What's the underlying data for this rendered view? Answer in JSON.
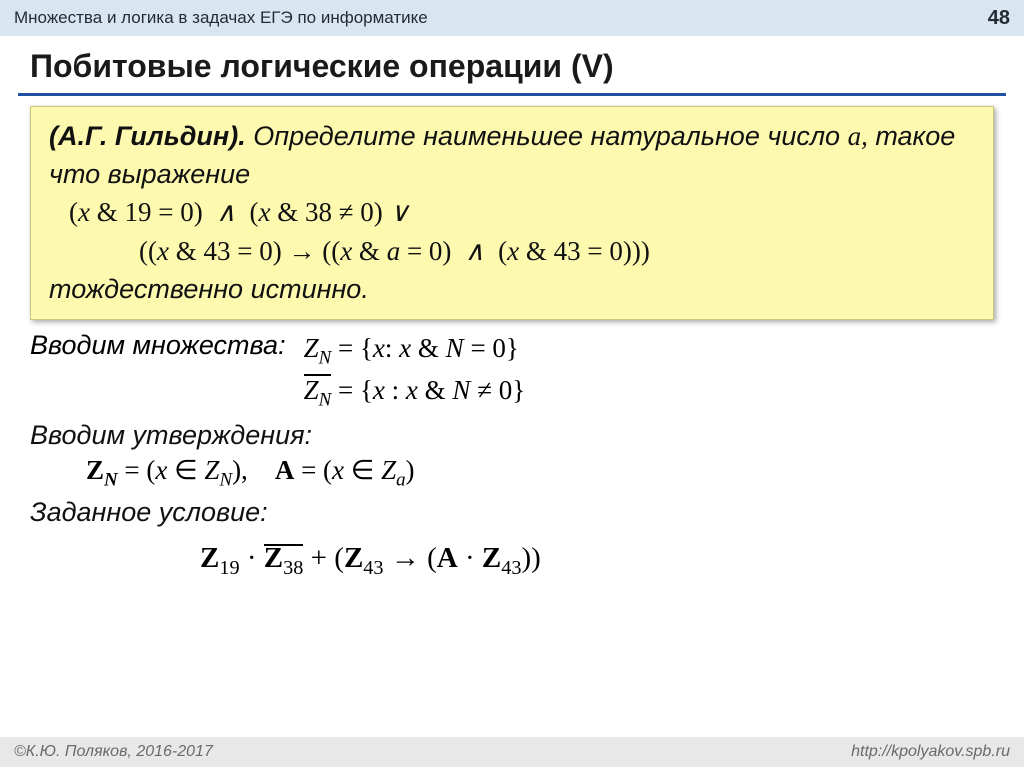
{
  "header": {
    "breadcrumb": "Множества и логика в задачах ЕГЭ по информатике",
    "page_number": "48"
  },
  "title": "Побитовые логические операции (V)",
  "problem": {
    "author": "(А.Г. Гильдин).",
    "lead1": " Определите наименьшее натуральное число ",
    "var_a": "a,",
    "lead2": " такое что выражение",
    "expr_line1": "(x & 19 = 0) ∧ (x & 38 ≠ 0) ∨",
    "expr_line2": "((x & 43 = 0) → ((x & a = 0)  ∧  (x & 43 = 0)))",
    "tail": "тождественно истинно."
  },
  "sets": {
    "label": "Вводим множества:",
    "def1_pre": "Z",
    "def1_sub": "N",
    "def1_rest": " = {x: x & N = 0}",
    "def2_pre": "Z",
    "def2_sub": "N",
    "def2_rest": " = {x : x & N ≠ 0}"
  },
  "statements": {
    "label": "Вводим утверждения:",
    "s_pre": "Z",
    "s_sub": "N",
    "s_mid": " = (x ∈ Z",
    "s_sub2": "N",
    "s_end": "),    ",
    "a_pre": "A",
    "a_mid": " = (x ∈ Z",
    "a_sub": "a",
    "a_end": ")"
  },
  "condition": {
    "label": "Заданное условие:",
    "z1": "Z",
    "sub19": "19",
    "dot1": " · ",
    "z2": "Z",
    "sub38": "38",
    "plus": " + (",
    "z3": "Z",
    "sub43a": "43",
    "arrow": " → (",
    "A": "A",
    "dot2": " · ",
    "z4": "Z",
    "sub43b": "43",
    "close": "))"
  },
  "footer": {
    "left": "©К.Ю. Поляков, 2016-2017",
    "right": "http://kpolyakov.spb.ru"
  },
  "style": {
    "background_color": "#ffffff",
    "header_bg": "#d9e5f0",
    "highlight_bg": "#fdfab0",
    "rule_color": "#1f4fa0",
    "footer_bg": "#e8e8e8",
    "title_fontsize": 32,
    "body_fontsize": 27
  }
}
